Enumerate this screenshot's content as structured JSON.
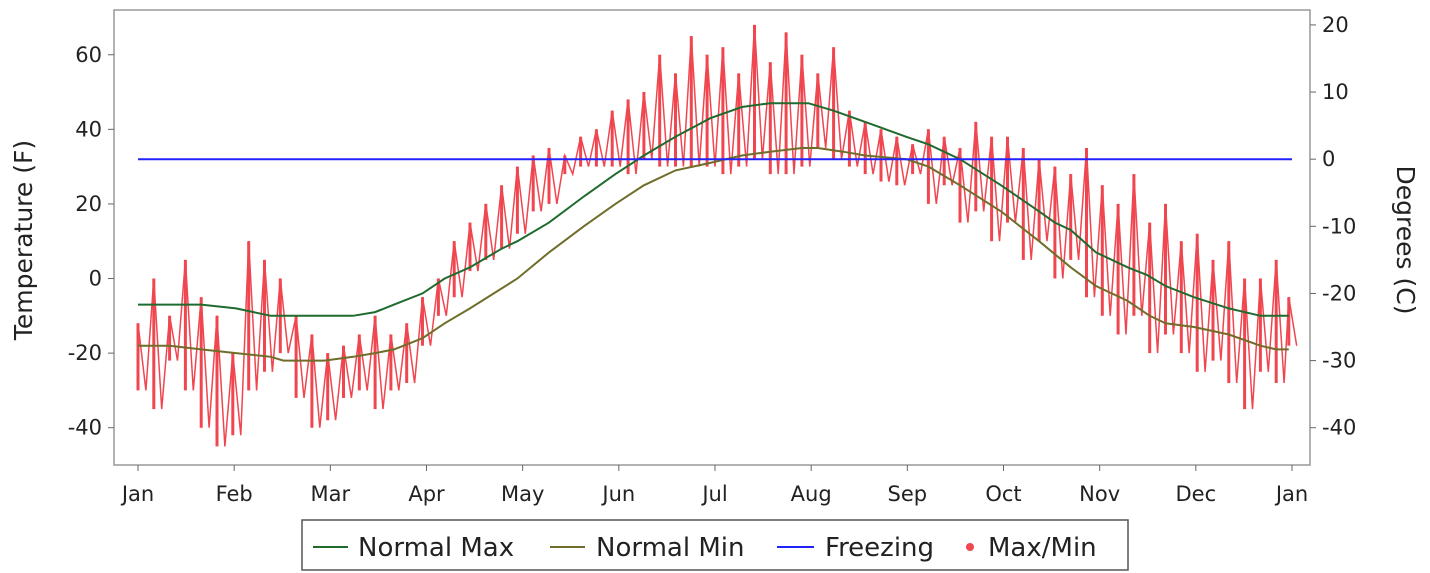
{
  "chart_data": {
    "type": "line",
    "x_ticks": [
      "Jan",
      "Feb",
      "Mar",
      "Apr",
      "May",
      "Jun",
      "Jul",
      "Aug",
      "Sep",
      "Oct",
      "Nov",
      "Dec",
      "Jan"
    ],
    "xlim": [
      0,
      365
    ],
    "ylabel": "Temperature (F)",
    "ylabel_right": "Degrees (C)",
    "ylim": [
      -50,
      72
    ],
    "y_ticks": [
      60,
      40,
      20,
      0,
      -20,
      -40
    ],
    "y_ticks_right": [
      20,
      10,
      0,
      -10,
      -20,
      -30,
      -40
    ],
    "legend_position": "bottom",
    "series": [
      {
        "name": "Normal Max",
        "style": "line",
        "color": "#1f6b2e",
        "x": [
          0,
          10,
          20,
          31,
          42,
          50,
          59,
          68,
          75,
          81,
          90,
          97,
          105,
          115,
          120,
          130,
          141,
          151,
          160,
          170,
          181,
          191,
          200,
          210,
          212,
          220,
          230,
          243,
          250,
          260,
          273,
          285,
          290,
          295,
          303,
          313,
          319,
          325,
          334,
          345,
          355,
          360,
          364
        ],
        "y": [
          -7,
          -7,
          -7,
          -8,
          -10,
          -10,
          -10,
          -10,
          -9,
          -7,
          -4,
          0,
          3,
          8,
          10,
          15,
          22,
          28,
          33,
          38,
          43,
          46,
          47,
          47,
          47,
          45,
          42,
          38,
          36,
          32,
          25,
          18,
          15,
          13,
          7,
          3,
          1,
          -2,
          -5,
          -8,
          -10,
          -10,
          -10
        ]
      },
      {
        "name": "Normal Min",
        "style": "line",
        "color": "#6e6e2a",
        "x": [
          0,
          10,
          20,
          31,
          42,
          46,
          50,
          59,
          68,
          75,
          81,
          90,
          97,
          105,
          120,
          130,
          141,
          151,
          160,
          170,
          181,
          191,
          200,
          210,
          215,
          223,
          230,
          243,
          250,
          260,
          273,
          285,
          295,
          303,
          313,
          320,
          325,
          334,
          345,
          355,
          360,
          364
        ],
        "y": [
          -18,
          -18,
          -19,
          -20,
          -21,
          -22,
          -22,
          -22,
          -21,
          -20,
          -19,
          -16,
          -12,
          -8,
          0,
          7,
          14,
          20,
          25,
          29,
          31,
          33,
          34,
          35,
          35,
          34,
          33,
          32,
          30,
          25,
          18,
          10,
          3,
          -2,
          -6,
          -10,
          -12,
          -13,
          -15,
          -18,
          -19,
          -19
        ]
      },
      {
        "name": "Freezing",
        "style": "line",
        "color": "#2222ff",
        "x": [
          0,
          365
        ],
        "y": [
          32,
          32
        ]
      },
      {
        "name": "Max/Min",
        "style": "range",
        "color": "#f0464f",
        "x": [
          0,
          5,
          10,
          15,
          20,
          25,
          30,
          35,
          40,
          45,
          50,
          55,
          60,
          65,
          70,
          75,
          80,
          85,
          90,
          95,
          100,
          105,
          110,
          115,
          120,
          125,
          130,
          135,
          140,
          145,
          150,
          155,
          160,
          165,
          170,
          175,
          180,
          185,
          190,
          195,
          200,
          205,
          210,
          215,
          220,
          225,
          230,
          235,
          240,
          245,
          250,
          255,
          260,
          265,
          270,
          275,
          280,
          285,
          290,
          295,
          300,
          305,
          310,
          315,
          320,
          325,
          330,
          335,
          340,
          345,
          350,
          355,
          360,
          364
        ],
        "y_max": [
          -12,
          0,
          -10,
          5,
          -5,
          -10,
          -20,
          10,
          5,
          0,
          -10,
          -15,
          -20,
          -18,
          -15,
          -10,
          -15,
          -12,
          -5,
          0,
          10,
          15,
          20,
          25,
          30,
          33,
          35,
          33,
          38,
          40,
          45,
          48,
          50,
          60,
          55,
          65,
          60,
          62,
          55,
          68,
          58,
          66,
          60,
          55,
          62,
          45,
          42,
          40,
          38,
          36,
          40,
          38,
          35,
          42,
          38,
          38,
          35,
          32,
          30,
          28,
          35,
          25,
          20,
          28,
          15,
          20,
          10,
          12,
          5,
          10,
          0,
          0,
          5,
          -5
        ],
        "y_min": [
          -30,
          -35,
          -22,
          -30,
          -40,
          -45,
          -42,
          -30,
          -25,
          -20,
          -32,
          -40,
          -38,
          -32,
          -30,
          -35,
          -30,
          -28,
          -18,
          -10,
          -5,
          2,
          5,
          8,
          12,
          18,
          20,
          28,
          30,
          30,
          30,
          28,
          32,
          30,
          30,
          30,
          30,
          28,
          30,
          32,
          28,
          28,
          30,
          35,
          32,
          30,
          28,
          26,
          25,
          28,
          20,
          25,
          15,
          18,
          10,
          15,
          5,
          10,
          0,
          5,
          -5,
          -10,
          -15,
          -10,
          -20,
          -15,
          -20,
          -25,
          -22,
          -28,
          -35,
          -25,
          -28,
          -18
        ]
      }
    ]
  }
}
